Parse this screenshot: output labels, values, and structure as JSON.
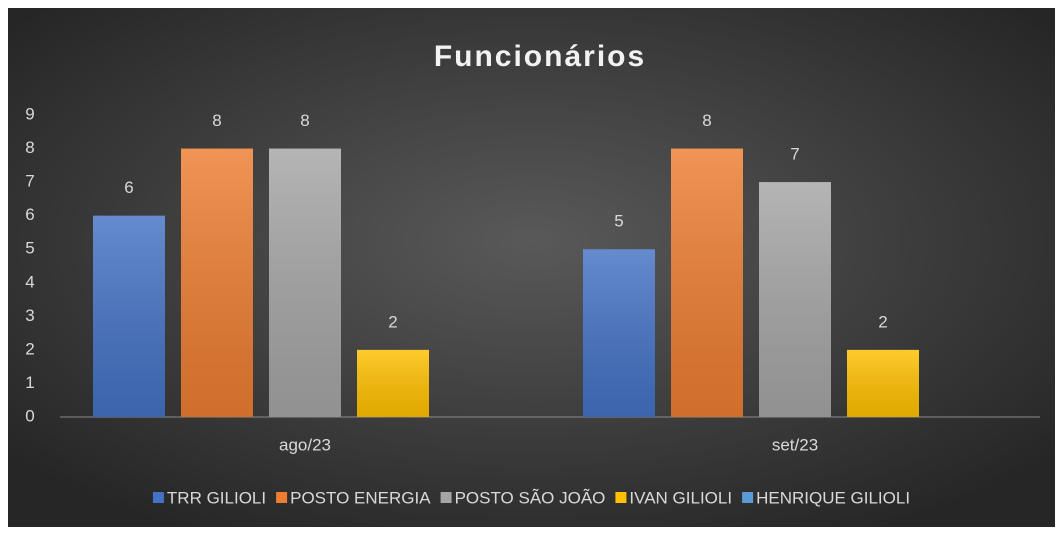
{
  "chart_data": {
    "type": "bar",
    "title": "Funcionários",
    "categories": [
      "ago/23",
      "set/23"
    ],
    "series": [
      {
        "name": "TRR GILIOLI",
        "color": "#4472c4",
        "values": [
          6,
          5
        ]
      },
      {
        "name": "POSTO ENERGIA",
        "color": "#ed7d31",
        "values": [
          8,
          8
        ]
      },
      {
        "name": "POSTO SÃO JOÃO",
        "color": "#a5a5a5",
        "values": [
          8,
          7
        ]
      },
      {
        "name": "IVAN GILIOLI",
        "color": "#ffc000",
        "values": [
          2,
          2
        ]
      },
      {
        "name": "HENRIQUE GILIOLI",
        "color": "#5b9bd5",
        "values": [
          null,
          null
        ]
      }
    ],
    "ylim": [
      0,
      9
    ],
    "yticks": [
      0,
      1,
      2,
      3,
      4,
      5,
      6,
      7,
      8,
      9
    ],
    "grid": false,
    "legend": "bottom"
  }
}
